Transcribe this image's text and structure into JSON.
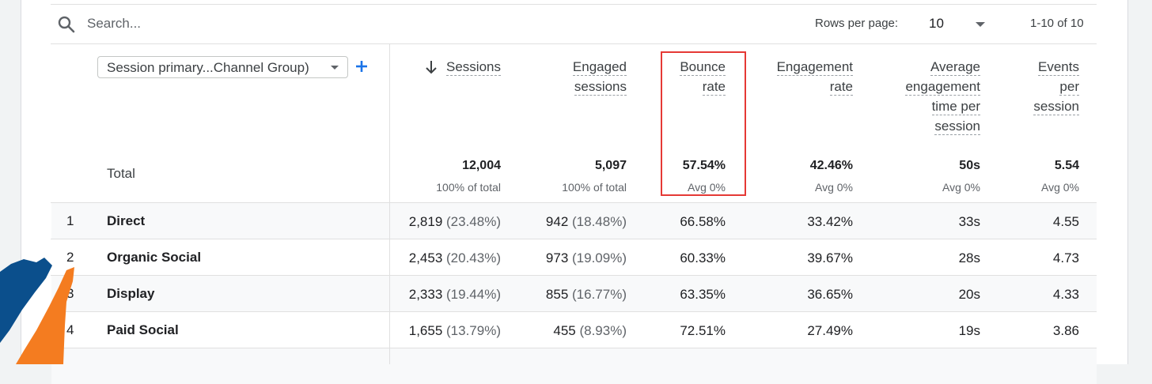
{
  "search": {
    "placeholder": "Search..."
  },
  "pagination": {
    "rows_label": "Rows per page:",
    "rows_value": "10",
    "range": "1-10 of 10"
  },
  "dimension": {
    "label": "Session primary...Channel Group)"
  },
  "columns": [
    {
      "lines": [
        "Sessions"
      ],
      "total": "12,004",
      "sub": "100% of total"
    },
    {
      "lines": [
        "Engaged",
        "sessions"
      ],
      "total": "5,097",
      "sub": "100% of total"
    },
    {
      "lines": [
        "Bounce",
        "rate"
      ],
      "total": "57.54%",
      "sub": "Avg 0%"
    },
    {
      "lines": [
        "Engagement",
        "rate"
      ],
      "total": "42.46%",
      "sub": "Avg 0%"
    },
    {
      "lines": [
        "Average",
        "engagement",
        "time per",
        "session"
      ],
      "total": "50s",
      "sub": "Avg 0%"
    },
    {
      "lines": [
        "Events",
        "per",
        "session"
      ],
      "total": "5.54",
      "sub": "Avg 0%"
    }
  ],
  "total_label": "Total",
  "rows": [
    {
      "index": "1",
      "name": "Direct",
      "sessions": "2,819",
      "sessions_pct": "(23.48%)",
      "engaged": "942",
      "engaged_pct": "(18.48%)",
      "bounce": "66.58%",
      "engagement": "33.42%",
      "avg_time": "33s",
      "events": "4.55"
    },
    {
      "index": "2",
      "name": "Organic Social",
      "sessions": "2,453",
      "sessions_pct": "(20.43%)",
      "engaged": "973",
      "engaged_pct": "(19.09%)",
      "bounce": "60.33%",
      "engagement": "39.67%",
      "avg_time": "28s",
      "events": "4.73"
    },
    {
      "index": "3",
      "name": "Display",
      "sessions": "2,333",
      "sessions_pct": "(19.44%)",
      "engaged": "855",
      "engaged_pct": "(16.77%)",
      "bounce": "63.35%",
      "engagement": "36.65%",
      "avg_time": "20s",
      "events": "4.33"
    },
    {
      "index": "4",
      "name": "Paid Social",
      "sessions": "1,655",
      "sessions_pct": "(13.79%)",
      "engaged": "455",
      "engaged_pct": "(8.93%)",
      "bounce": "72.51%",
      "engagement": "27.49%",
      "avg_time": "19s",
      "events": "3.86"
    }
  ],
  "icons": {
    "search": "search-icon",
    "sort": "arrow-down-icon",
    "add": "plus-icon",
    "caret": "caret-down-icon"
  },
  "colors": {
    "accent": "#1a73e8",
    "highlight": "#e53935",
    "logo_blue": "#0b4f8c",
    "logo_orange": "#f47c20"
  }
}
